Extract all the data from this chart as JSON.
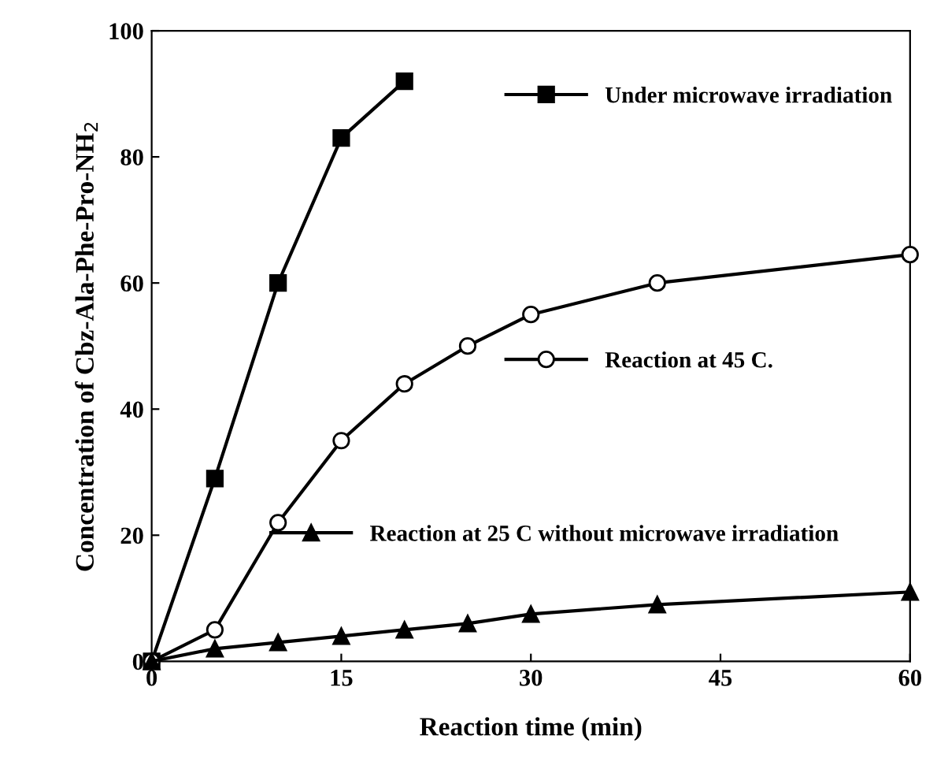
{
  "chart_data": {
    "type": "line",
    "xlabel": "Reaction time (min)",
    "ylabel": "Concentration of Cbz-Ala-Phe-Pro-NH$_{2}$",
    "xlim": [
      0,
      60
    ],
    "xticks": [
      0,
      15,
      30,
      45,
      60
    ],
    "ylim": [
      0,
      100
    ],
    "yticks": [
      0,
      20,
      40,
      60,
      80,
      100
    ],
    "grid": false,
    "line_style": "solid",
    "legend": "right",
    "series": [
      {
        "name": "Under microwave irradiation",
        "color": "#000000",
        "marker": "square",
        "x": [
          0,
          5,
          10,
          15,
          20
        ],
        "values": [
          0,
          29,
          60,
          83,
          92
        ]
      },
      {
        "name": "Reaction at 45 C.",
        "color": "#000000",
        "marker": "circle",
        "x": [
          0,
          5,
          10,
          15,
          20,
          25,
          30,
          40,
          60
        ],
        "values": [
          0,
          5,
          22,
          35,
          44,
          50,
          55,
          60,
          64.5
        ]
      },
      {
        "name": "Reaction at 25 C without microwave irradiation",
        "color": "#000000",
        "marker": "triangle",
        "x": [
          0,
          5,
          10,
          15,
          20,
          25,
          30,
          40,
          60
        ],
        "values": [
          0,
          2,
          3,
          4,
          5,
          6,
          7.5,
          9,
          11
        ]
      }
    ]
  }
}
